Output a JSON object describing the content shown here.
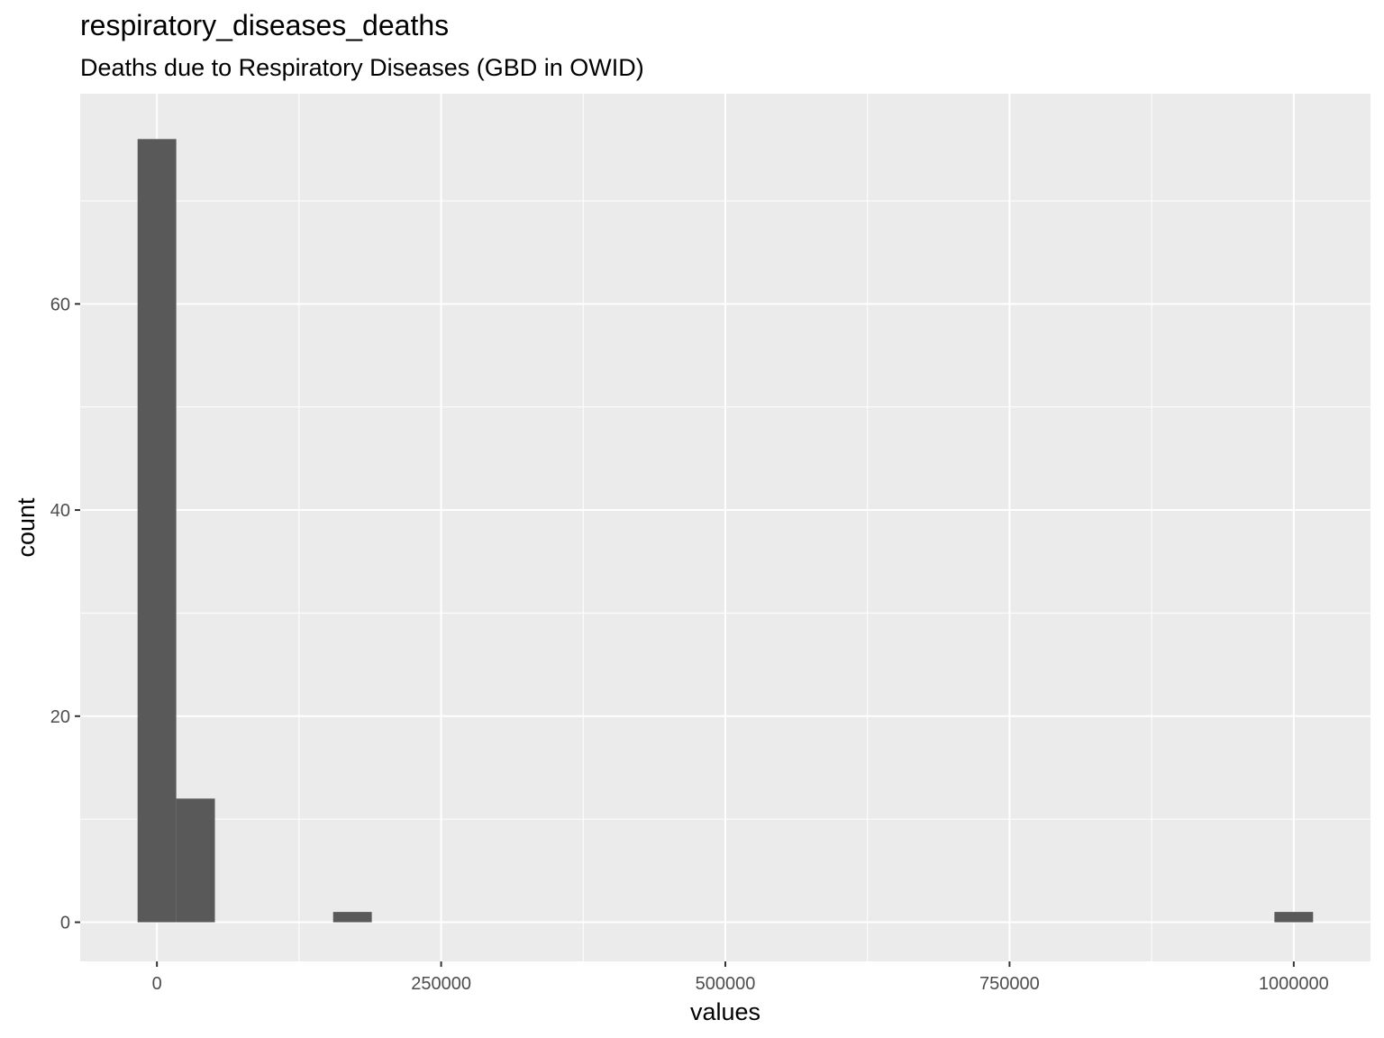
{
  "chart_data": {
    "type": "bar",
    "title": "respiratory_diseases_deaths",
    "subtitle": "Deaths due to Respiratory Diseases (GBD in OWID)",
    "xlabel": "values",
    "ylabel": "count",
    "xlim": [
      -67500,
      1067500
    ],
    "ylim": [
      -3.8,
      80.4
    ],
    "x_ticks": [
      0,
      250000,
      500000,
      750000,
      1000000
    ],
    "x_tick_labels": [
      "0",
      "250000",
      "500000",
      "750000",
      "1000000"
    ],
    "y_ticks": [
      0,
      20,
      40,
      60
    ],
    "y_tick_labels": [
      "0",
      "20",
      "40",
      "60"
    ],
    "grid": true,
    "bins": [
      {
        "x_start": -17000,
        "x_end": 17000,
        "count": 76
      },
      {
        "x_start": 17000,
        "x_end": 51000,
        "count": 12
      },
      {
        "x_start": 155000,
        "x_end": 189000,
        "count": 1
      },
      {
        "x_start": 983000,
        "x_end": 1017000,
        "count": 1
      }
    ],
    "colors": {
      "bar": "#595959",
      "panel": "#ebebeb",
      "grid": "#ffffff",
      "axis_text": "#4d4d4d"
    }
  }
}
